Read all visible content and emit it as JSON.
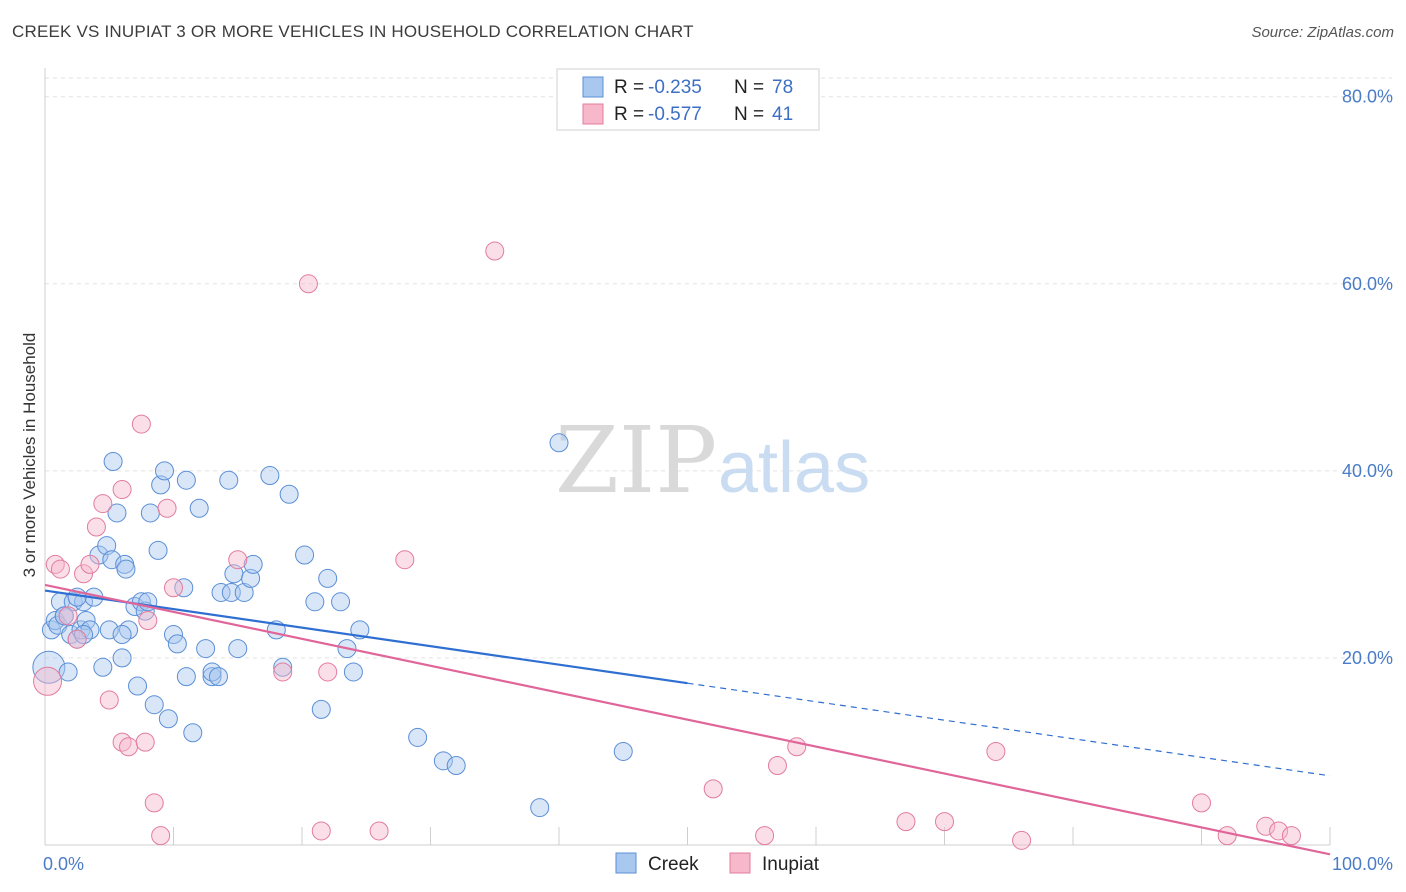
{
  "header": {
    "title": "CREEK VS INUPIAT 3 OR MORE VEHICLES IN HOUSEHOLD CORRELATION CHART",
    "source": "Source: ZipAtlas.com"
  },
  "watermark": {
    "zip": "ZIP",
    "atlas": "atlas"
  },
  "legend": {
    "rows": [
      {
        "r_label": "R =",
        "r_value": "-0.235",
        "n_label": "N =",
        "n_value": "78",
        "color": "#a8c8f0"
      },
      {
        "r_label": "R =",
        "r_value": "-0.577",
        "n_label": "N =",
        "n_value": "41",
        "color": "#f7b8cb"
      }
    ]
  },
  "chart_data": {
    "type": "scatter",
    "title": "CREEK VS INUPIAT 3 OR MORE VEHICLES IN HOUSEHOLD CORRELATION CHART",
    "ylabel": "3 or more Vehicles in Household",
    "xlabel": "",
    "xlim": [
      0,
      100
    ],
    "ylim": [
      0,
      82
    ],
    "x_tick_labels": [
      "0.0%",
      "100.0%"
    ],
    "y_ticks": [
      20,
      40,
      60,
      80
    ],
    "y_tick_labels": [
      "20.0%",
      "40.0%",
      "60.0%",
      "80.0%"
    ],
    "grid": true,
    "legend_position": "top-center",
    "series": [
      {
        "name": "Creek",
        "color": "#a8c8f0",
        "stroke": "#5b8fd6",
        "trend": {
          "x0": 0,
          "y0": 27.2,
          "x1": 50,
          "y1": 17.3,
          "dashed_to_x": 100,
          "dashed_to_y": 7.4,
          "color": "#2f6fd1"
        },
        "points": [
          [
            0.3,
            19.0
          ],
          [
            0.5,
            23.0
          ],
          [
            0.8,
            24.0
          ],
          [
            1.0,
            23.5
          ],
          [
            1.2,
            26.0
          ],
          [
            1.5,
            24.5
          ],
          [
            1.8,
            18.5
          ],
          [
            2.0,
            22.5
          ],
          [
            2.2,
            26.0
          ],
          [
            2.5,
            22.0
          ],
          [
            2.8,
            23.0
          ],
          [
            3.0,
            26.0
          ],
          [
            3.2,
            24.0
          ],
          [
            3.5,
            23.0
          ],
          [
            3.8,
            26.5
          ],
          [
            4.2,
            31.0
          ],
          [
            4.5,
            19.0
          ],
          [
            4.8,
            32.0
          ],
          [
            5.0,
            23.0
          ],
          [
            5.3,
            41.0
          ],
          [
            5.6,
            35.5
          ],
          [
            5.2,
            30.5
          ],
          [
            6.0,
            20.0
          ],
          [
            6.2,
            30.0
          ],
          [
            6.5,
            23.0
          ],
          [
            6.3,
            29.5
          ],
          [
            7.0,
            25.5
          ],
          [
            7.2,
            17.0
          ],
          [
            7.5,
            26.0
          ],
          [
            7.8,
            25.0
          ],
          [
            8.0,
            26.0
          ],
          [
            8.2,
            35.5
          ],
          [
            8.5,
            15.0
          ],
          [
            8.8,
            31.5
          ],
          [
            9.0,
            38.5
          ],
          [
            9.3,
            40.0
          ],
          [
            9.6,
            13.5
          ],
          [
            10.0,
            22.5
          ],
          [
            10.3,
            21.5
          ],
          [
            10.8,
            27.5
          ],
          [
            11.0,
            39.0
          ],
          [
            11.0,
            18.0
          ],
          [
            11.5,
            12.0
          ],
          [
            12.0,
            36.0
          ],
          [
            12.5,
            21.0
          ],
          [
            13.0,
            18.0
          ],
          [
            13.0,
            18.5
          ],
          [
            13.5,
            18.0
          ],
          [
            13.7,
            27.0
          ],
          [
            14.3,
            39.0
          ],
          [
            14.5,
            27.0
          ],
          [
            14.7,
            29.0
          ],
          [
            15.0,
            21.0
          ],
          [
            15.5,
            27.0
          ],
          [
            16.0,
            28.5
          ],
          [
            16.2,
            30.0
          ],
          [
            17.5,
            39.5
          ],
          [
            18.0,
            23.0
          ],
          [
            18.5,
            19.0
          ],
          [
            19.0,
            37.5
          ],
          [
            20.2,
            31.0
          ],
          [
            21.0,
            26.0
          ],
          [
            21.5,
            14.5
          ],
          [
            22.0,
            28.5
          ],
          [
            23.0,
            26.0
          ],
          [
            23.5,
            21.0
          ],
          [
            24.0,
            18.5
          ],
          [
            24.5,
            23.0
          ],
          [
            29.0,
            11.5
          ],
          [
            31.0,
            9.0
          ],
          [
            32.0,
            8.5
          ],
          [
            38.5,
            4.0
          ],
          [
            40.0,
            43.0
          ],
          [
            45.0,
            10.0
          ],
          [
            6.0,
            22.5
          ],
          [
            3.0,
            22.5
          ],
          [
            2.5,
            26.5
          ],
          [
            1.5,
            24.5
          ]
        ]
      },
      {
        "name": "Inupiat",
        "color": "#f7b8cb",
        "stroke": "#e27c9e",
        "trend": {
          "x0": 0,
          "y0": 27.8,
          "x1": 100,
          "y1": -1.0,
          "color": "#e0669a"
        },
        "points": [
          [
            0.2,
            17.5
          ],
          [
            0.8,
            30.0
          ],
          [
            1.2,
            29.5
          ],
          [
            1.8,
            24.5
          ],
          [
            2.5,
            22.0
          ],
          [
            3.0,
            29.0
          ],
          [
            3.5,
            30.0
          ],
          [
            4.0,
            34.0
          ],
          [
            4.5,
            36.5
          ],
          [
            5.0,
            15.5
          ],
          [
            6.0,
            38.0
          ],
          [
            6.0,
            11.0
          ],
          [
            6.5,
            10.5
          ],
          [
            7.5,
            45.0
          ],
          [
            7.8,
            11.0
          ],
          [
            8.0,
            24.0
          ],
          [
            8.5,
            4.5
          ],
          [
            9.5,
            36.0
          ],
          [
            10.0,
            27.5
          ],
          [
            15.0,
            30.5
          ],
          [
            18.5,
            18.5
          ],
          [
            20.5,
            60.0
          ],
          [
            21.5,
            1.5
          ],
          [
            22.0,
            18.5
          ],
          [
            26.0,
            1.5
          ],
          [
            28.0,
            30.5
          ],
          [
            35.0,
            63.5
          ],
          [
            52.0,
            6.0
          ],
          [
            56.0,
            1.0
          ],
          [
            57.0,
            8.5
          ],
          [
            58.5,
            10.5
          ],
          [
            67.0,
            2.5
          ],
          [
            70.0,
            2.5
          ],
          [
            74.0,
            10.0
          ],
          [
            76.0,
            0.5
          ],
          [
            90.0,
            4.5
          ],
          [
            92.0,
            1.0
          ],
          [
            95.0,
            2.0
          ],
          [
            96.0,
            1.5
          ],
          [
            97.0,
            1.0
          ],
          [
            9.0,
            1.0
          ]
        ]
      }
    ]
  }
}
